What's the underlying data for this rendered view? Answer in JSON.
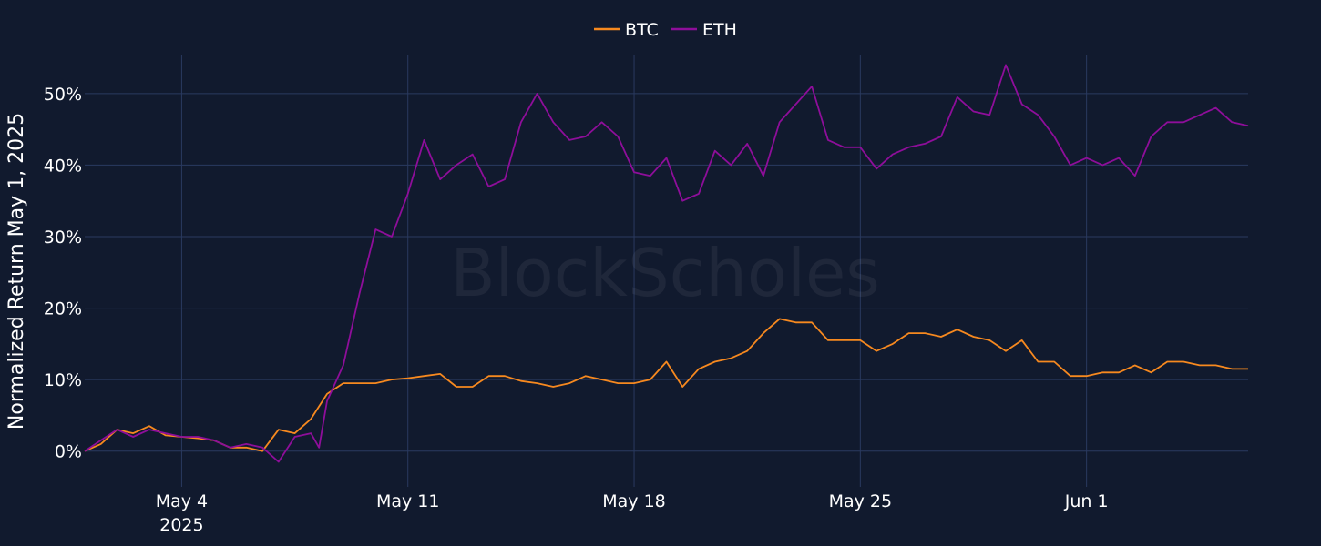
{
  "chart_data": {
    "type": "line",
    "title": "",
    "xlabel": "",
    "ylabel": "Normalized Return May 1, 2025",
    "x_range": [
      "2025-05-01",
      "2025-06-06"
    ],
    "ylim": [
      -5,
      58
    ],
    "y_unit": "%",
    "grid": true,
    "legend_position": "top-center",
    "watermark": "BlockScholes",
    "x_ticks": [
      {
        "date": "2025-05-04",
        "label": "May 4",
        "sublabel": "2025"
      },
      {
        "date": "2025-05-11",
        "label": "May 11",
        "sublabel": ""
      },
      {
        "date": "2025-05-18",
        "label": "May 18",
        "sublabel": ""
      },
      {
        "date": "2025-05-25",
        "label": "May 25",
        "sublabel": ""
      },
      {
        "date": "2025-06-01",
        "label": "Jun 1",
        "sublabel": ""
      }
    ],
    "y_ticks": [
      {
        "value": 0,
        "label": "0%"
      },
      {
        "value": 10,
        "label": "10%"
      },
      {
        "value": 20,
        "label": "20%"
      },
      {
        "value": 30,
        "label": "30%"
      },
      {
        "value": 40,
        "label": "40%"
      },
      {
        "value": 50,
        "label": "50%"
      }
    ],
    "series": [
      {
        "name": "BTC",
        "color": "#f7891f",
        "points": [
          [
            "2025-05-01",
            0.0
          ],
          [
            "2025-05-01T12",
            1.0
          ],
          [
            "2025-05-02",
            3.0
          ],
          [
            "2025-05-02T12",
            2.5
          ],
          [
            "2025-05-03",
            3.5
          ],
          [
            "2025-05-03T12",
            2.2
          ],
          [
            "2025-05-04",
            2.0
          ],
          [
            "2025-05-04T12",
            1.8
          ],
          [
            "2025-05-05",
            1.5
          ],
          [
            "2025-05-05T12",
            0.5
          ],
          [
            "2025-05-06",
            0.5
          ],
          [
            "2025-05-06T12",
            0.0
          ],
          [
            "2025-05-07",
            3.0
          ],
          [
            "2025-05-07T12",
            2.5
          ],
          [
            "2025-05-08",
            4.5
          ],
          [
            "2025-05-08T12",
            8.0
          ],
          [
            "2025-05-09",
            9.5
          ],
          [
            "2025-05-09T12",
            9.5
          ],
          [
            "2025-05-10",
            9.5
          ],
          [
            "2025-05-10T12",
            10.0
          ],
          [
            "2025-05-11",
            10.2
          ],
          [
            "2025-05-11T12",
            10.5
          ],
          [
            "2025-05-12",
            10.8
          ],
          [
            "2025-05-12T12",
            9.0
          ],
          [
            "2025-05-13",
            9.0
          ],
          [
            "2025-05-13T12",
            10.5
          ],
          [
            "2025-05-14",
            10.5
          ],
          [
            "2025-05-14T12",
            9.8
          ],
          [
            "2025-05-15",
            9.5
          ],
          [
            "2025-05-15T12",
            9.0
          ],
          [
            "2025-05-16",
            9.5
          ],
          [
            "2025-05-16T12",
            10.5
          ],
          [
            "2025-05-17",
            10.0
          ],
          [
            "2025-05-17T12",
            9.5
          ],
          [
            "2025-05-18",
            9.5
          ],
          [
            "2025-05-18T12",
            10.0
          ],
          [
            "2025-05-19",
            12.5
          ],
          [
            "2025-05-19T12",
            9.0
          ],
          [
            "2025-05-20",
            11.5
          ],
          [
            "2025-05-20T12",
            12.5
          ],
          [
            "2025-05-21",
            13.0
          ],
          [
            "2025-05-21T12",
            14.0
          ],
          [
            "2025-05-22",
            16.5
          ],
          [
            "2025-05-22T12",
            18.5
          ],
          [
            "2025-05-23",
            18.0
          ],
          [
            "2025-05-23T12",
            18.0
          ],
          [
            "2025-05-24",
            15.5
          ],
          [
            "2025-05-24T12",
            15.5
          ],
          [
            "2025-05-25",
            15.5
          ],
          [
            "2025-05-25T12",
            14.0
          ],
          [
            "2025-05-26",
            15.0
          ],
          [
            "2025-05-26T12",
            16.5
          ],
          [
            "2025-05-27",
            16.5
          ],
          [
            "2025-05-27T12",
            16.0
          ],
          [
            "2025-05-28",
            17.0
          ],
          [
            "2025-05-28T12",
            16.0
          ],
          [
            "2025-05-29",
            15.5
          ],
          [
            "2025-05-29T12",
            14.0
          ],
          [
            "2025-05-30",
            15.5
          ],
          [
            "2025-05-30T12",
            12.5
          ],
          [
            "2025-05-31",
            12.5
          ],
          [
            "2025-05-31T12",
            10.5
          ],
          [
            "2025-06-01",
            10.5
          ],
          [
            "2025-06-01T12",
            11.0
          ],
          [
            "2025-06-02",
            11.0
          ],
          [
            "2025-06-02T12",
            12.0
          ],
          [
            "2025-06-03",
            11.0
          ],
          [
            "2025-06-03T12",
            12.5
          ],
          [
            "2025-06-04",
            12.5
          ],
          [
            "2025-06-04T12",
            12.0
          ],
          [
            "2025-06-05",
            12.0
          ],
          [
            "2025-06-05T12",
            11.5
          ],
          [
            "2025-06-06",
            11.5
          ]
        ]
      },
      {
        "name": "ETH",
        "color": "#8e0e9a",
        "points": [
          [
            "2025-05-01",
            0.0
          ],
          [
            "2025-05-01T12",
            1.5
          ],
          [
            "2025-05-02",
            3.0
          ],
          [
            "2025-05-02T12",
            2.0
          ],
          [
            "2025-05-03",
            3.0
          ],
          [
            "2025-05-03T12",
            2.5
          ],
          [
            "2025-05-04",
            2.0
          ],
          [
            "2025-05-04T12",
            2.0
          ],
          [
            "2025-05-05",
            1.5
          ],
          [
            "2025-05-05T12",
            0.5
          ],
          [
            "2025-05-06",
            1.0
          ],
          [
            "2025-05-06T12",
            0.5
          ],
          [
            "2025-05-07",
            -1.5
          ],
          [
            "2025-05-07T12",
            2.0
          ],
          [
            "2025-05-08",
            2.5
          ],
          [
            "2025-05-08T06",
            0.5
          ],
          [
            "2025-05-08T12",
            7.0
          ],
          [
            "2025-05-09",
            12.0
          ],
          [
            "2025-05-09T12",
            22.0
          ],
          [
            "2025-05-10",
            31.0
          ],
          [
            "2025-05-10T12",
            30.0
          ],
          [
            "2025-05-11",
            36.0
          ],
          [
            "2025-05-11T12",
            43.5
          ],
          [
            "2025-05-12",
            38.0
          ],
          [
            "2025-05-12T12",
            40.0
          ],
          [
            "2025-05-13",
            41.5
          ],
          [
            "2025-05-13T12",
            37.0
          ],
          [
            "2025-05-14",
            38.0
          ],
          [
            "2025-05-14T12",
            46.0
          ],
          [
            "2025-05-15",
            50.0
          ],
          [
            "2025-05-15T12",
            46.0
          ],
          [
            "2025-05-16",
            43.5
          ],
          [
            "2025-05-16T12",
            44.0
          ],
          [
            "2025-05-17",
            46.0
          ],
          [
            "2025-05-17T12",
            44.0
          ],
          [
            "2025-05-18",
            39.0
          ],
          [
            "2025-05-18T12",
            38.5
          ],
          [
            "2025-05-19",
            41.0
          ],
          [
            "2025-05-19T12",
            35.0
          ],
          [
            "2025-05-20",
            36.0
          ],
          [
            "2025-05-20T12",
            42.0
          ],
          [
            "2025-05-21",
            40.0
          ],
          [
            "2025-05-21T12",
            43.0
          ],
          [
            "2025-05-22",
            38.5
          ],
          [
            "2025-05-22T12",
            46.0
          ],
          [
            "2025-05-23",
            48.5
          ],
          [
            "2025-05-23T12",
            51.0
          ],
          [
            "2025-05-24",
            43.5
          ],
          [
            "2025-05-24T12",
            42.5
          ],
          [
            "2025-05-25",
            42.5
          ],
          [
            "2025-05-25T12",
            39.5
          ],
          [
            "2025-05-26",
            41.5
          ],
          [
            "2025-05-26T12",
            42.5
          ],
          [
            "2025-05-27",
            43.0
          ],
          [
            "2025-05-27T12",
            44.0
          ],
          [
            "2025-05-28",
            49.5
          ],
          [
            "2025-05-28T12",
            47.5
          ],
          [
            "2025-05-29",
            47.0
          ],
          [
            "2025-05-29T12",
            54.0
          ],
          [
            "2025-05-30",
            48.5
          ],
          [
            "2025-05-30T12",
            47.0
          ],
          [
            "2025-05-31",
            44.0
          ],
          [
            "2025-05-31T12",
            40.0
          ],
          [
            "2025-06-01",
            41.0
          ],
          [
            "2025-06-01T12",
            40.0
          ],
          [
            "2025-06-02",
            41.0
          ],
          [
            "2025-06-02T12",
            38.5
          ],
          [
            "2025-06-03",
            44.0
          ],
          [
            "2025-06-03T12",
            46.0
          ],
          [
            "2025-06-04",
            46.0
          ],
          [
            "2025-06-04T12",
            47.0
          ],
          [
            "2025-06-05",
            48.0
          ],
          [
            "2025-06-05T12",
            46.0
          ],
          [
            "2025-06-06",
            45.5
          ]
        ]
      }
    ]
  }
}
